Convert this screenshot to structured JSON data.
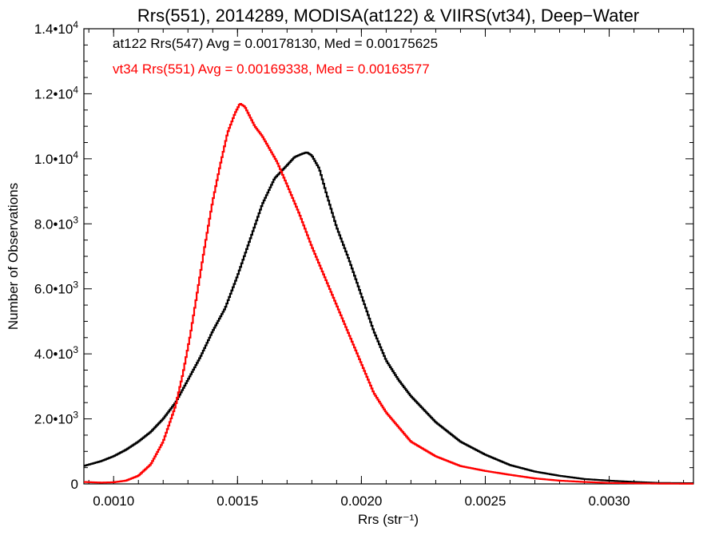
{
  "chart_data": {
    "type": "line",
    "title": "Rrs(551), 2014289, MODISA(at122) & VIIRS(vt34), Deep−Water",
    "xlabel": "Rrs (str⁻¹)",
    "ylabel": "Number of Observations",
    "xlim": [
      0.00088,
      0.00334
    ],
    "ylim": [
      0,
      14000
    ],
    "x_ticks": [
      0.001,
      0.0015,
      0.002,
      0.0025,
      0.003
    ],
    "x_tick_labels": [
      "0.0010",
      "0.0015",
      "0.0020",
      "0.0025",
      "0.0030"
    ],
    "y_ticks": [
      {
        "value": 0,
        "mant": "0",
        "exp": ""
      },
      {
        "value": 2000,
        "mant": "2.0•10",
        "exp": "3"
      },
      {
        "value": 4000,
        "mant": "4.0•10",
        "exp": "3"
      },
      {
        "value": 6000,
        "mant": "6.0•10",
        "exp": "3"
      },
      {
        "value": 8000,
        "mant": "8.0•10",
        "exp": "3"
      },
      {
        "value": 10000,
        "mant": "1.0•10",
        "exp": "4"
      },
      {
        "value": 12000,
        "mant": "1.2•10",
        "exp": "4"
      },
      {
        "value": 14000,
        "mant": "1.4•10",
        "exp": "4"
      }
    ],
    "annotations": [
      {
        "text": "at122 Rrs(547) Avg = 0.00178130, Med = 0.00175625",
        "color": "#000000"
      },
      {
        "text": "vt34 Rrs(551) Avg = 0.00169338, Med = 0.00163577",
        "color": "#ff0000"
      }
    ],
    "series": [
      {
        "color": "#000000",
        "x": [
          0.00088,
          0.00095,
          0.001,
          0.00105,
          0.0011,
          0.00115,
          0.0012,
          0.00125,
          0.0013,
          0.00135,
          0.0014,
          0.00145,
          0.0015,
          0.00155,
          0.0016,
          0.00165,
          0.0017,
          0.00173,
          0.00176,
          0.00178,
          0.0018,
          0.00183,
          0.00186,
          0.0019,
          0.00195,
          0.002,
          0.00205,
          0.0021,
          0.00215,
          0.0022,
          0.0023,
          0.0024,
          0.0025,
          0.0026,
          0.0027,
          0.0028,
          0.0029,
          0.003,
          0.0031,
          0.0032,
          0.00334
        ],
        "y": [
          550,
          700,
          850,
          1050,
          1300,
          1600,
          2000,
          2500,
          3200,
          3900,
          4700,
          5400,
          6400,
          7500,
          8600,
          9400,
          9800,
          10050,
          10150,
          10200,
          10100,
          9700,
          8900,
          7900,
          6900,
          5800,
          4700,
          3800,
          3200,
          2700,
          1900,
          1300,
          900,
          580,
          380,
          250,
          150,
          100,
          60,
          30,
          20
        ]
      },
      {
        "color": "#ff0000",
        "x": [
          0.00088,
          0.00095,
          0.001,
          0.00105,
          0.0011,
          0.00115,
          0.0012,
          0.00125,
          0.00128,
          0.00131,
          0.00134,
          0.00137,
          0.0014,
          0.00143,
          0.00146,
          0.00149,
          0.00151,
          0.00153,
          0.00155,
          0.00157,
          0.0016,
          0.00163,
          0.00166,
          0.0017,
          0.00175,
          0.0018,
          0.00185,
          0.0019,
          0.00195,
          0.002,
          0.00205,
          0.0021,
          0.0022,
          0.0023,
          0.0024,
          0.0025,
          0.0026,
          0.0027,
          0.0028,
          0.0029,
          0.003,
          0.0031,
          0.0032,
          0.00334
        ],
        "y": [
          60,
          40,
          50,
          100,
          250,
          600,
          1300,
          2400,
          3400,
          4600,
          6000,
          7400,
          8700,
          9800,
          10800,
          11400,
          11700,
          11600,
          11300,
          11000,
          10700,
          10300,
          9900,
          9200,
          8300,
          7300,
          6400,
          5500,
          4600,
          3700,
          2800,
          2200,
          1300,
          850,
          550,
          400,
          280,
          170,
          100,
          60,
          30,
          20,
          10,
          5
        ]
      }
    ]
  }
}
